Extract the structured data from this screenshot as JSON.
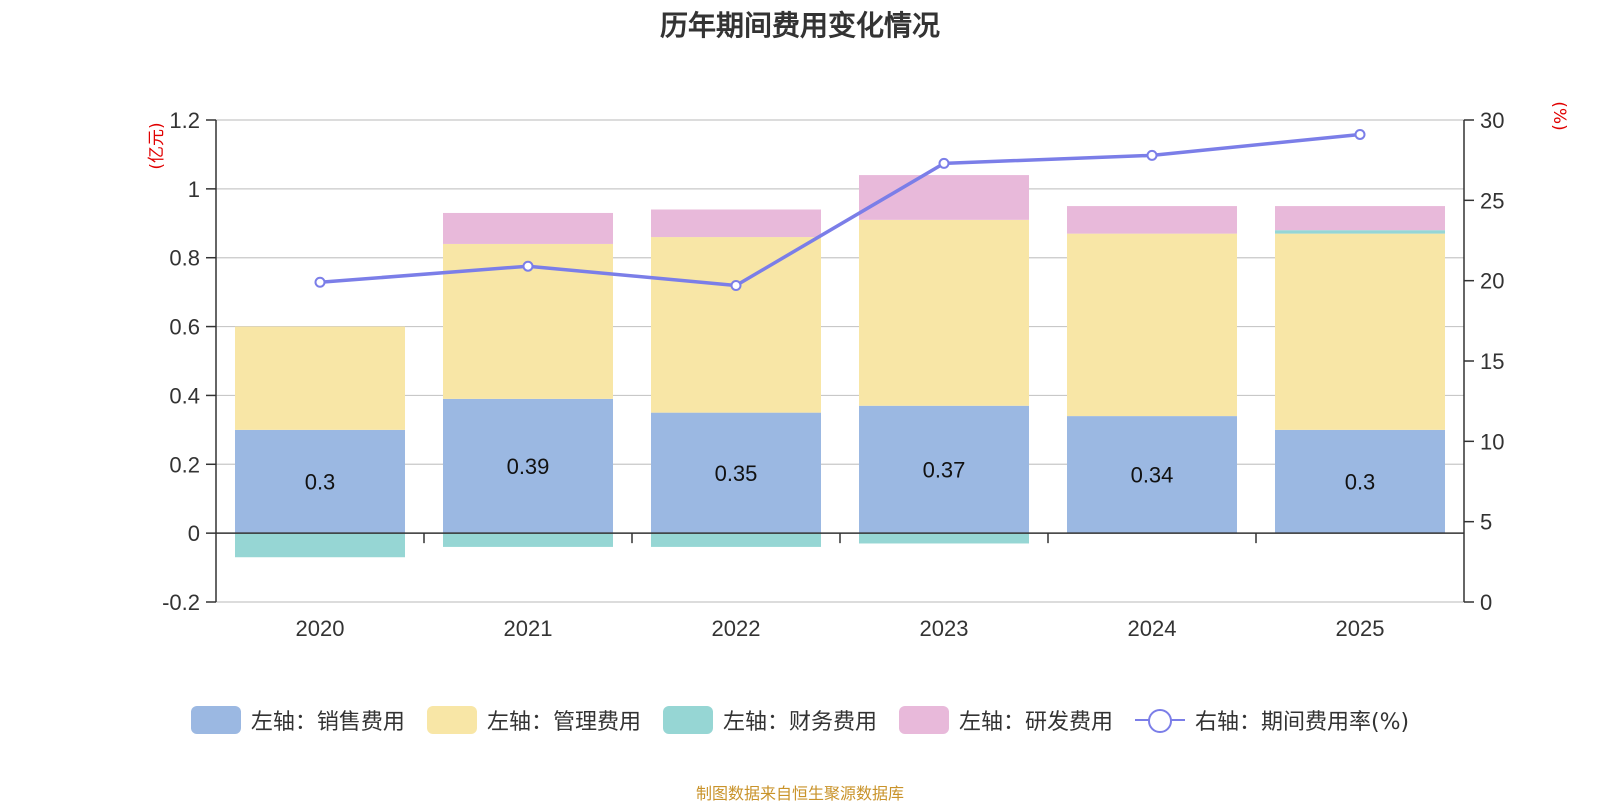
{
  "chart_data": {
    "type": "bar",
    "title": "历年期间费用变化情况",
    "categories": [
      "2020",
      "2021",
      "2022",
      "2023",
      "2024",
      "2025"
    ],
    "left_axis": {
      "unit_label": "(亿元)",
      "ylim": [
        -0.2,
        1.2
      ],
      "ticks": [
        -0.2,
        0,
        0.2,
        0.4,
        0.6,
        0.8,
        1,
        1.2
      ],
      "tick_labels": [
        "-0.2",
        "0",
        "0.2",
        "0.4",
        "0.6",
        "0.8",
        "1",
        "1.2"
      ]
    },
    "right_axis": {
      "unit_label": "(%)",
      "ylim": [
        0,
        30
      ],
      "ticks": [
        0,
        5,
        10,
        15,
        20,
        25,
        30
      ],
      "tick_labels": [
        "0",
        "5",
        "10",
        "15",
        "20",
        "25",
        "30"
      ]
    },
    "series": [
      {
        "name": "左轴：销售费用",
        "axis": "left",
        "kind": "stacked-bar",
        "color": "#9bb8e2",
        "values": [
          0.3,
          0.39,
          0.35,
          0.37,
          0.34,
          0.3
        ],
        "data_labels": [
          "0.3",
          "0.39",
          "0.35",
          "0.37",
          "0.34",
          "0.3"
        ]
      },
      {
        "name": "左轴：管理费用",
        "axis": "left",
        "kind": "stacked-bar",
        "color": "#f8e6a6",
        "values": [
          0.3,
          0.45,
          0.51,
          0.54,
          0.53,
          0.57
        ]
      },
      {
        "name": "左轴：财务费用",
        "axis": "left",
        "kind": "stacked-bar",
        "color": "#96d6d4",
        "values": [
          -0.07,
          -0.04,
          -0.04,
          -0.03,
          0.0,
          0.01
        ]
      },
      {
        "name": "左轴：研发费用",
        "axis": "left",
        "kind": "stacked-bar",
        "color": "#e8b9da",
        "values": [
          0.0,
          0.09,
          0.08,
          0.13,
          0.08,
          0.07
        ]
      },
      {
        "name": "右轴：期间费用率(%)",
        "axis": "right",
        "kind": "line",
        "color": "#7b7ee8",
        "values": [
          19.9,
          20.9,
          19.7,
          27.3,
          27.8,
          29.1
        ]
      }
    ],
    "grid": true
  },
  "source": "制图数据来自恒生聚源数据库"
}
